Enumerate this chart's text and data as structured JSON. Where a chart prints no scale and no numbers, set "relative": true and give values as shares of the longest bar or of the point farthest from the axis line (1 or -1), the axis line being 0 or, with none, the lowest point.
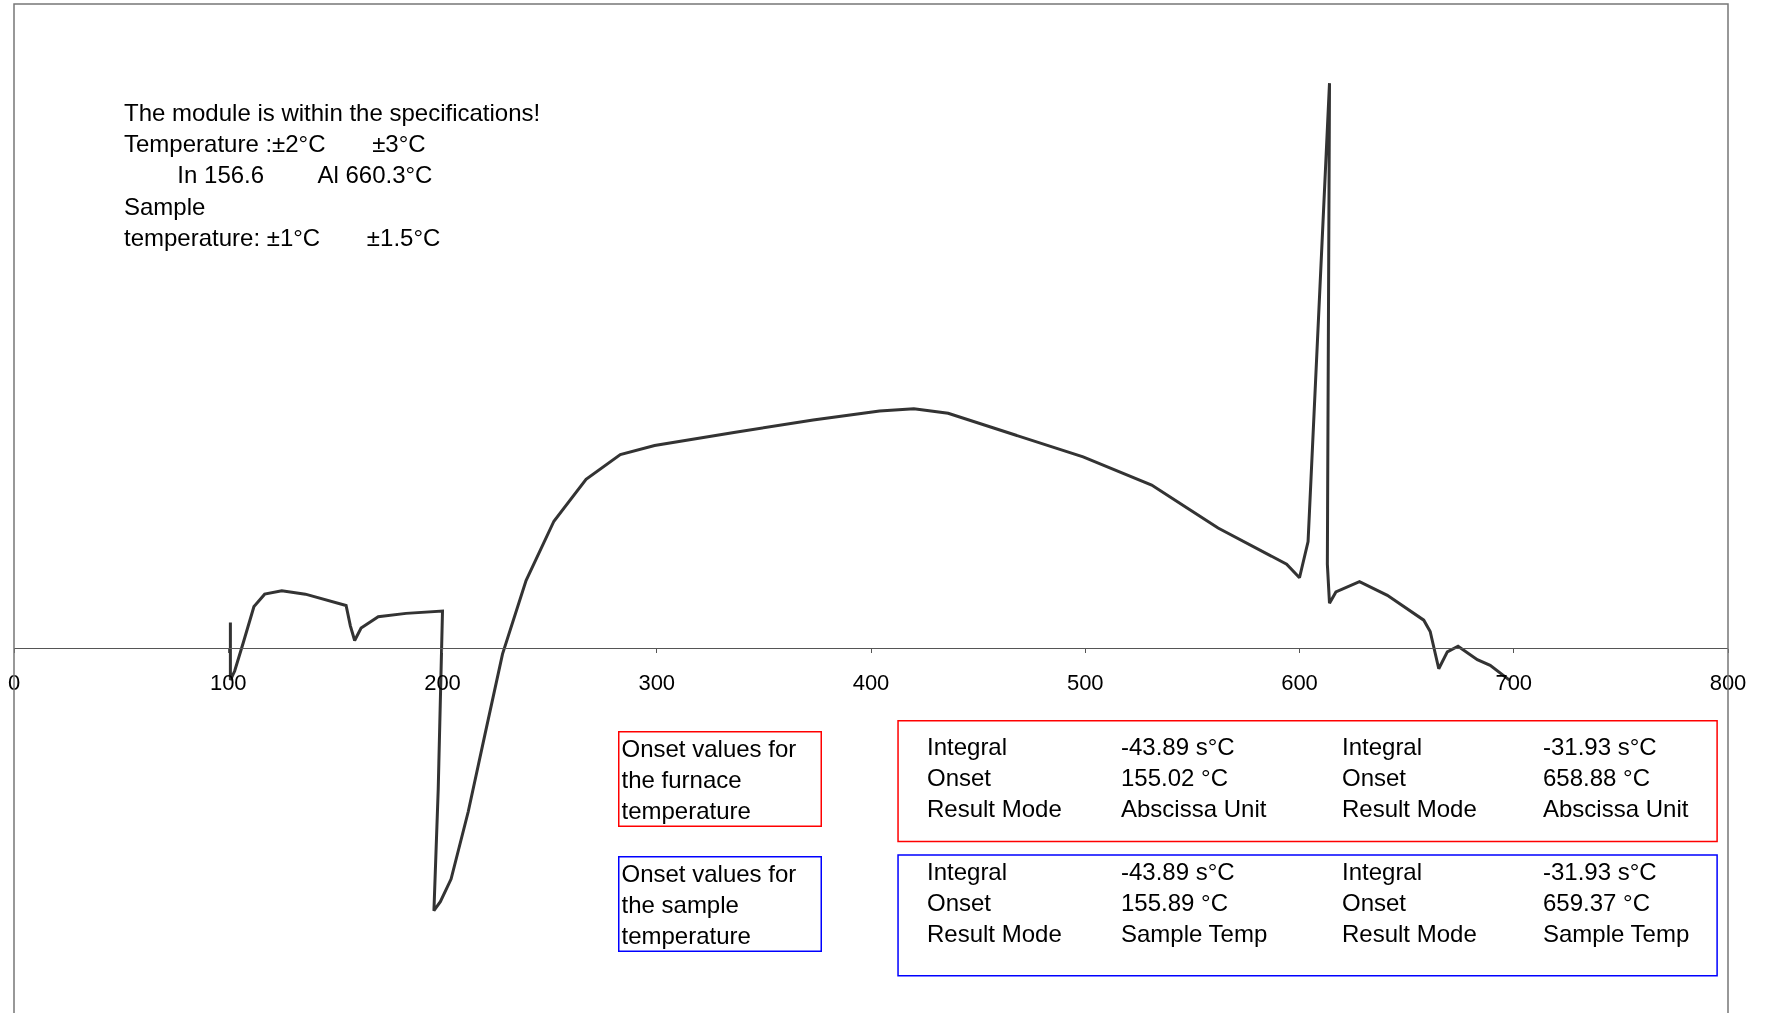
{
  "chart_data": {
    "type": "line",
    "relative": true,
    "marker": "none",
    "line_style": "solid",
    "xlim": [
      0,
      800
    ],
    "xticks": [
      0,
      100,
      200,
      300,
      400,
      500,
      600,
      700,
      800
    ],
    "tick_labels": "x",
    "series": [
      {
        "color": "#333333",
        "x": [
          101,
          101,
          103,
          107,
          112,
          117,
          125,
          136,
          155,
          157,
          159,
          162,
          170,
          183,
          200,
          198,
          196,
          199,
          204,
          212,
          220,
          228,
          239,
          252,
          267,
          283,
          299,
          336,
          373,
          404,
          420,
          436,
          467,
          499,
          531,
          562,
          594,
          600,
          604,
          614,
          613,
          614,
          617,
          628,
          641,
          658,
          661,
          665,
          669,
          674,
          683,
          689,
          698
        ],
        "values": [
          0.046,
          -0.056,
          -0.04,
          0.01,
          0.074,
          0.096,
          0.102,
          0.096,
          0.076,
          0.04,
          0.014,
          0.036,
          0.056,
          0.062,
          0.066,
          -0.249,
          -0.464,
          -0.448,
          -0.408,
          -0.289,
          -0.149,
          -0.01,
          0.12,
          0.225,
          0.299,
          0.343,
          0.359,
          0.382,
          0.404,
          0.42,
          0.424,
          0.416,
          0.378,
          0.339,
          0.289,
          0.213,
          0.149,
          0.125,
          0.189,
          1.0,
          0.149,
          0.08,
          0.1,
          0.118,
          0.094,
          0.05,
          0.03,
          -0.036,
          -0.006,
          0.004,
          -0.02,
          -0.03,
          -0.056
        ]
      }
    ],
    "annotations": [
      "The module is within the specifications!\nTemperature :±2°C       ±3°C\n        In 156.6        Al 660.3°C\nSample\ntemperature: ±1°C       ±1.5°C",
      "Onset values for\nthe furnace\ntemperature",
      "Integral\nOnset\nResult Mode",
      "-43.89 s°C\n155.02 °C\nAbscissa Unit",
      "Integral\nOnset\nResult Mode",
      "-31.93 s°C\n658.88 °C\nAbscissa Unit",
      "Onset values for\nthe sample\ntemperature",
      "Integral\nOnset\nResult Mode",
      "-43.89 s°C\n155.89 °C\nSample Temp",
      "Integral\nOnset\nResult Mode",
      "-31.93 s°C\n659.37 °C\nSample Temp"
    ]
  }
}
